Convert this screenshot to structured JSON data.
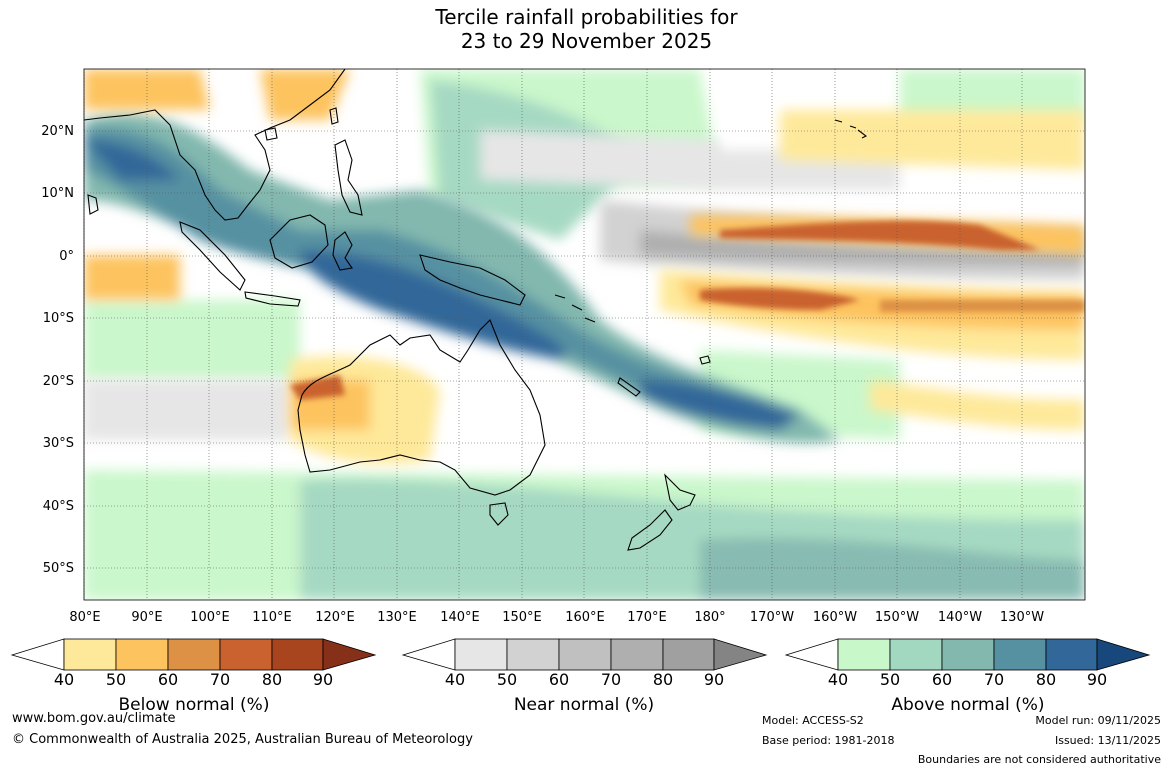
{
  "title": {
    "line1": "Tercile rainfall probabilities for",
    "line2": "23 to 29 November 2025"
  },
  "axes": {
    "lat_labels": [
      "20°N",
      "10°N",
      "0°",
      "10°S",
      "20°S",
      "30°S",
      "40°S",
      "50°S"
    ],
    "lon_labels": [
      "80°E",
      "90°E",
      "100°E",
      "110°E",
      "120°E",
      "130°E",
      "140°E",
      "150°E",
      "160°E",
      "170°E",
      "180°",
      "170°W",
      "160°W",
      "150°W",
      "140°W",
      "130°W"
    ],
    "lat_range": [
      -55,
      30
    ],
    "lon_range": [
      80,
      240
    ],
    "gridlines": true
  },
  "legend": {
    "below": {
      "title": "Below normal (%)",
      "ticks": [
        "40",
        "50",
        "60",
        "70",
        "80",
        "90"
      ],
      "colors": [
        "#ffffff",
        "#fee99a",
        "#fdc35f",
        "#dd9144",
        "#c9622f",
        "#a8441e",
        "#86301a"
      ]
    },
    "near": {
      "title": "Near normal (%)",
      "ticks": [
        "40",
        "50",
        "60",
        "70",
        "80",
        "90"
      ],
      "colors": [
        "#ffffff",
        "#e6e6e6",
        "#d2d2d2",
        "#c0c0c0",
        "#afafaf",
        "#a0a0a0",
        "#848484"
      ]
    },
    "above": {
      "title": "Above normal (%)",
      "ticks": [
        "40",
        "50",
        "60",
        "70",
        "80",
        "90"
      ],
      "colors": [
        "#ffffff",
        "#c8f7c9",
        "#a2d8c0",
        "#82b8ae",
        "#5691a2",
        "#316799",
        "#17477b"
      ]
    }
  },
  "footer": {
    "website": "www.bom.gov.au/climate",
    "copyright": "© Commonwealth of Australia 2025, Australian Bureau of Meteorology",
    "model": "Model: ACCESS-S2",
    "base_period": "Base period: 1981-2018",
    "model_run": "Model run: 09/11/2025",
    "issued": "Issued: 13/11/2025",
    "disclaimer": "Boundaries are not considered authoritative"
  }
}
